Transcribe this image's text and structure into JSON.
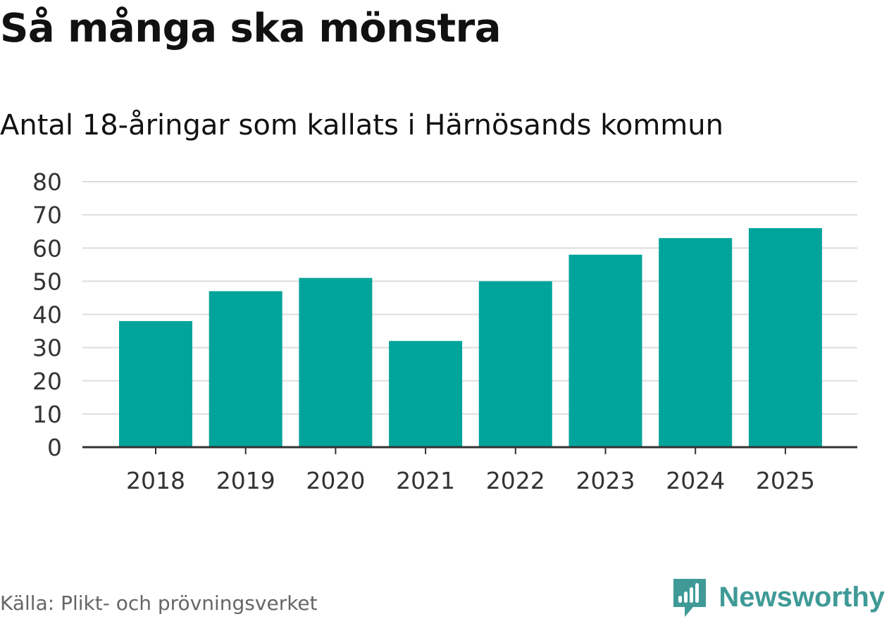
{
  "title": "Så många ska mönstra",
  "subtitle": "Antal 18-åringar som kallats i Härnösands kommun",
  "source": "Källa: Plikt- och prövningsverket",
  "brand": {
    "name": "Newsworthy",
    "icon": "newsworthy-logo-icon",
    "color": "#3f9a97"
  },
  "colors": {
    "bar": "#00a49a",
    "grid": "#dddddd",
    "axis": "#333333"
  },
  "chart_data": {
    "type": "bar",
    "title": "Så många ska mönstra",
    "subtitle": "Antal 18-åringar som kallats i Härnösands kommun",
    "xlabel": "",
    "ylabel": "",
    "categories": [
      "2018",
      "2019",
      "2020",
      "2021",
      "2022",
      "2023",
      "2024",
      "2025"
    ],
    "values": [
      38,
      47,
      51,
      32,
      50,
      58,
      63,
      66
    ],
    "ylim": [
      0,
      80
    ],
    "yticks": [
      0,
      10,
      20,
      30,
      40,
      50,
      60,
      70,
      80
    ],
    "grid": true,
    "legend": "none"
  }
}
